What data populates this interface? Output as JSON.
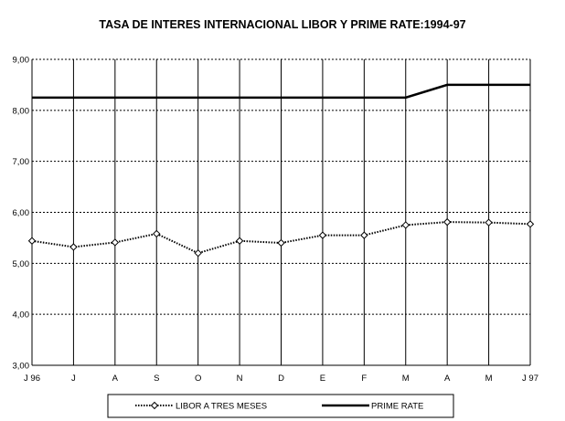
{
  "chart_data": {
    "type": "line",
    "title": "TASA DE INTERES INTERNACIONAL LIBOR Y PRIME RATE:1994-97",
    "xlabel": "",
    "ylabel": "",
    "categories": [
      "J 96",
      "J",
      "A",
      "S",
      "O",
      "N",
      "D",
      "E",
      "F",
      "M",
      "A",
      "M",
      "J 97"
    ],
    "ylim": [
      3.0,
      9.0
    ],
    "yticks": [
      "3,00",
      "4,00",
      "5,00",
      "6,00",
      "7,00",
      "8,00",
      "9,00"
    ],
    "grid": "dotted horizontal, solid vertical",
    "legend_position": "bottom",
    "series": [
      {
        "name": "LIBOR A TRES MESES",
        "values": [
          5.44,
          5.32,
          5.41,
          5.58,
          5.2,
          5.44,
          5.4,
          5.55,
          5.55,
          5.75,
          5.81,
          5.8,
          5.77
        ],
        "color": "#000000",
        "style": "dotted-diamond"
      },
      {
        "name": "PRIME RATE",
        "values": [
          8.25,
          8.25,
          8.25,
          8.25,
          8.25,
          8.25,
          8.25,
          8.25,
          8.25,
          8.25,
          8.5,
          8.5,
          8.5
        ],
        "color": "#000000",
        "style": "solid"
      }
    ]
  }
}
